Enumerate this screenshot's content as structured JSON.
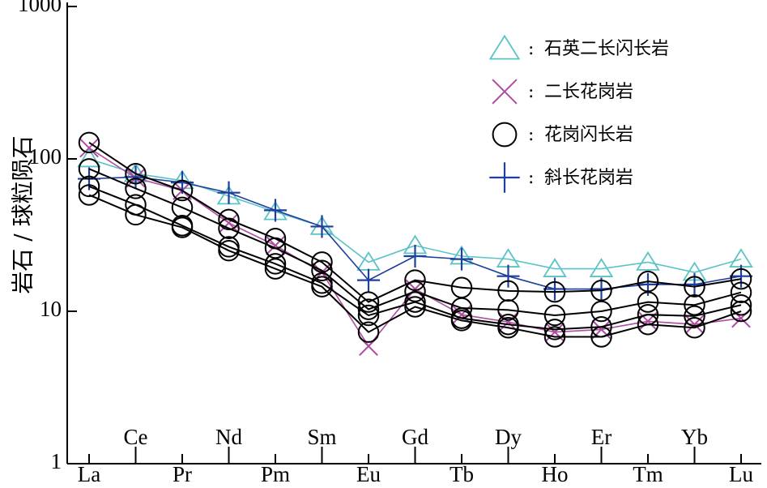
{
  "chart_data": {
    "type": "line",
    "title": "",
    "xlabel": "",
    "ylabel": "岩石 / 球粒陨石",
    "yscale": "log",
    "ylim": [
      1,
      1000
    ],
    "yticks": [
      "1",
      "10",
      "100",
      "1000"
    ],
    "categories": [
      "La",
      "Ce",
      "Pr",
      "Nd",
      "Pm",
      "Sm",
      "Eu",
      "Gd",
      "Tb",
      "Dy",
      "Ho",
      "Er",
      "Tm",
      "Yb",
      "Lu"
    ],
    "legend_position": "top-right",
    "legend": {
      "separator": ":",
      "entries": [
        "石英二长闪长岩",
        "二长花岗岩",
        "花岗闪长岩",
        "斜长花岗岩"
      ]
    },
    "series": [
      {
        "name": "石英二长闪长岩",
        "group": 0,
        "marker": "triangle",
        "color": "#5bc3c8",
        "values": [
          100,
          80,
          72,
          57,
          45,
          36,
          21,
          27,
          23,
          22,
          19,
          19,
          21,
          18,
          22
        ]
      },
      {
        "name": "二长花岗岩",
        "group": 1,
        "marker": "x",
        "color": "#b04ca2",
        "values": [
          118,
          75,
          62,
          38,
          27,
          18,
          5.9,
          14,
          9.5,
          8.5,
          7.3,
          7.6,
          8.6,
          8.2,
          9.0
        ]
      },
      {
        "name": "斜长花岗岩",
        "group": 3,
        "marker": "plus",
        "color": "#1f3f9e",
        "values": [
          74,
          76,
          70,
          60,
          46,
          36,
          16,
          23,
          22,
          17,
          14,
          14,
          15,
          15,
          17
        ]
      },
      {
        "group": 2,
        "marker": "circle",
        "color": "#000000",
        "values": [
          128,
          80,
          62,
          40,
          30,
          21,
          11.5,
          16,
          14.3,
          13.6,
          13.4,
          13.7,
          15.7,
          14.5,
          16.3
        ]
      },
      {
        "group": 2,
        "marker": "circle",
        "color": "#000000",
        "values": [
          86,
          64,
          48,
          35,
          26,
          18.5,
          10.3,
          13.5,
          10.5,
          10.2,
          9.4,
          10,
          11.5,
          11,
          13.3
        ]
      },
      {
        "group": 2,
        "marker": "circle",
        "color": "#000000",
        "values": [
          66,
          50,
          36.5,
          26.5,
          20.5,
          15.3,
          9.4,
          11.5,
          9.0,
          8.2,
          7.6,
          7.9,
          9.5,
          9.3,
          11
        ]
      },
      {
        "group": 2,
        "marker": "circle",
        "color": "#000000",
        "values": [
          58,
          43,
          35.5,
          25,
          19,
          14.5,
          7.3,
          10.7,
          8.7,
          7.8,
          6.8,
          6.8,
          8.2,
          7.8,
          10
        ]
      }
    ]
  }
}
